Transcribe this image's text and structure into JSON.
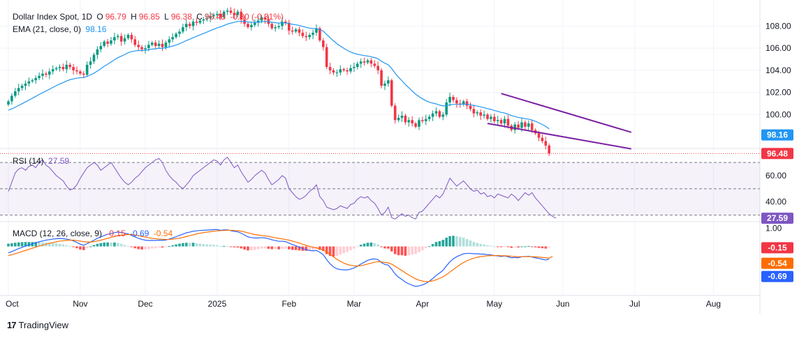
{
  "legend": {
    "symbol": "Dollar Index Spot, 1D",
    "o_label": "O",
    "o": "96.79",
    "h_label": "H",
    "h": "96.85",
    "l_label": "L",
    "l": "96.38",
    "c_label": "C",
    "c": "96.48",
    "change": "-0.30 (-0.31%)",
    "ema_label": "EMA (21, close, 0)",
    "ema": "98.16",
    "rsi_label": "RSI (14)",
    "rsi": "27.59",
    "macd_label": "MACD (12, 26, close, 9)",
    "macd_hist": "-0.15",
    "macd_line": "-0.69",
    "macd_signal": "-0.54"
  },
  "footer": {
    "brand": "TradingView"
  },
  "colors": {
    "up": "#089981",
    "down": "#f23645",
    "ema": "#2196f3",
    "channel": "#7b1fa2",
    "rsi": "#7e57c2",
    "macd": "#2962ff",
    "signal": "#ff6d00"
  },
  "chart_data": [
    {
      "type": "candlestick",
      "title": "Dollar Index Spot, 1D",
      "x_tick_labels": [
        "Oct",
        "Nov",
        "Dec",
        "2025",
        "Feb",
        "Mar",
        "Apr",
        "May",
        "Jun",
        "Jul",
        "Aug"
      ],
      "y_ticks": [
        100,
        102,
        104,
        106,
        108
      ],
      "ylim": [
        97.0,
        109.6
      ],
      "close": [
        101.2,
        101.7,
        102.1,
        102.4,
        102.6,
        102.8,
        103.0,
        103.1,
        103.3,
        103.5,
        103.7,
        103.6,
        103.9,
        104.1,
        104.2,
        104.3,
        104.1,
        104.5,
        104.3,
        104.0,
        103.9,
        103.7,
        103.6,
        104.5,
        104.8,
        105.4,
        105.9,
        106.2,
        106.6,
        106.4,
        106.7,
        107.0,
        107.1,
        106.6,
        106.9,
        107.2,
        106.8,
        106.3,
        106.1,
        105.9,
        106.0,
        106.3,
        106.5,
        106.2,
        106.4,
        106.1,
        106.5,
        106.8,
        107.0,
        107.3,
        107.5,
        107.9,
        108.2,
        108.0,
        108.4,
        108.3,
        108.5,
        108.6,
        108.7,
        108.9,
        109.0,
        109.1,
        108.8,
        109.3,
        109.4,
        109.2,
        109.0,
        109.3,
        108.6,
        108.2,
        107.9,
        108.1,
        108.3,
        108.5,
        108.8,
        108.6,
        108.2,
        107.8,
        107.9,
        108.0,
        108.4,
        108.3,
        107.6,
        107.5,
        107.7,
        107.4,
        107.1,
        107.0,
        107.2,
        107.4,
        107.8,
        106.7,
        106.1,
        104.3,
        104.0,
        103.8,
        103.8,
        104.1,
        104.0,
        103.9,
        104.2,
        104.3,
        104.6,
        104.8,
        104.7,
        104.9,
        104.6,
        104.4,
        104.0,
        102.6,
        102.8,
        103.1,
        100.8,
        99.5,
        99.7,
        99.9,
        99.3,
        99.5,
        99.2,
        98.9,
        99.5,
        99.4,
        99.6,
        99.8,
        100.1,
        100.3,
        99.8,
        100.0,
        101.1,
        101.6,
        101.3,
        101.0,
        100.9,
        101.2,
        100.8,
        100.5,
        100.1,
        100.2,
        99.9,
        100.0,
        99.6,
        99.8,
        99.4,
        99.5,
        99.2,
        99.6,
        99.0,
        98.6,
        99.1,
        98.8,
        99.3,
        98.9,
        99.2,
        98.6,
        98.3,
        97.9,
        97.6,
        97.2,
        96.48
      ],
      "ema_21_last": 98.16,
      "last_close": 96.48,
      "channel": {
        "upper": [
          {
            "date_index": 144,
            "price": 101.9
          },
          {
            "date_index": 182,
            "price": 98.4
          }
        ],
        "lower": [
          {
            "date_index": 140,
            "price": 99.2
          },
          {
            "date_index": 182,
            "price": 96.9
          }
        ]
      }
    },
    {
      "type": "line",
      "title": "RSI (14)",
      "y_ticks": [
        40,
        60
      ],
      "bands": [
        30,
        50,
        70
      ],
      "values": [
        48,
        55,
        62,
        65,
        66,
        64,
        67,
        68,
        66,
        70,
        72,
        68,
        66,
        63,
        60,
        58,
        56,
        52,
        49,
        50,
        53,
        58,
        62,
        66,
        68,
        70,
        68,
        64,
        66,
        68,
        70,
        66,
        62,
        58,
        55,
        53,
        55,
        58,
        60,
        63,
        66,
        68,
        70,
        72,
        73,
        70,
        64,
        60,
        57,
        55,
        52,
        50,
        53,
        56,
        60,
        62,
        64,
        66,
        68,
        70,
        72,
        71,
        68,
        72,
        74,
        70,
        66,
        68,
        63,
        59,
        55,
        57,
        60,
        62,
        64,
        62,
        57,
        53,
        55,
        57,
        60,
        58,
        50,
        47,
        44,
        42,
        43,
        45,
        48,
        50,
        53,
        44,
        41,
        36,
        35,
        34,
        35,
        37,
        36,
        35,
        38,
        39,
        42,
        44,
        43,
        44,
        41,
        39,
        35,
        30,
        32,
        36,
        28,
        27,
        29,
        31,
        29,
        30,
        28,
        27,
        32,
        33,
        36,
        39,
        42,
        45,
        43,
        46,
        52,
        58,
        55,
        52,
        54,
        56,
        53,
        50,
        48,
        49,
        46,
        47,
        44,
        45,
        43,
        46,
        45,
        44,
        43,
        46,
        44,
        41,
        44,
        47,
        45,
        47,
        43,
        40,
        37,
        34,
        31,
        29,
        27.59
      ],
      "last": 27.59
    },
    {
      "type": "macd",
      "title": "MACD (12, 26, close, 9)",
      "y_ticks": [
        1.0
      ],
      "macd": [
        -0.35,
        -0.28,
        -0.2,
        -0.12,
        -0.05,
        0.02,
        0.08,
        0.14,
        0.2,
        0.25,
        0.3,
        0.34,
        0.37,
        0.4,
        0.42,
        0.43,
        0.42,
        0.4,
        0.36,
        0.3,
        0.22,
        0.12,
        0.06,
        0.15,
        0.24,
        0.34,
        0.44,
        0.52,
        0.6,
        0.66,
        0.7,
        0.75,
        0.78,
        0.76,
        0.72,
        0.68,
        0.6,
        0.52,
        0.44,
        0.38,
        0.34,
        0.32,
        0.33,
        0.32,
        0.34,
        0.33,
        0.35,
        0.4,
        0.46,
        0.53,
        0.6,
        0.67,
        0.74,
        0.78,
        0.83,
        0.85,
        0.87,
        0.88,
        0.89,
        0.9,
        0.92,
        0.92,
        0.88,
        0.9,
        0.9,
        0.86,
        0.82,
        0.8,
        0.72,
        0.62,
        0.52,
        0.48,
        0.46,
        0.46,
        0.48,
        0.46,
        0.42,
        0.36,
        0.32,
        0.28,
        0.28,
        0.26,
        0.18,
        0.1,
        0.04,
        -0.04,
        -0.12,
        -0.18,
        -0.22,
        -0.24,
        -0.22,
        -0.32,
        -0.45,
        -0.72,
        -0.95,
        -1.12,
        -1.22,
        -1.26,
        -1.28,
        -1.28,
        -1.24,
        -1.18,
        -1.08,
        -0.96,
        -0.86,
        -0.76,
        -0.7,
        -0.68,
        -0.72,
        -0.88,
        -0.98,
        -1.02,
        -1.24,
        -1.5,
        -1.68,
        -1.8,
        -1.95,
        -2.04,
        -2.12,
        -2.18,
        -2.15,
        -2.1,
        -2.02,
        -1.9,
        -1.75,
        -1.58,
        -1.45,
        -1.3,
        -1.06,
        -0.84,
        -0.68,
        -0.56,
        -0.48,
        -0.4,
        -0.38,
        -0.38,
        -0.4,
        -0.4,
        -0.42,
        -0.42,
        -0.45,
        -0.46,
        -0.5,
        -0.52,
        -0.55,
        -0.52,
        -0.56,
        -0.62,
        -0.6,
        -0.62,
        -0.56,
        -0.56,
        -0.54,
        -0.58,
        -0.62,
        -0.66,
        -0.7,
        -0.74,
        -0.69
      ],
      "signal": [
        -0.5,
        -0.45,
        -0.4,
        -0.34,
        -0.28,
        -0.22,
        -0.16,
        -0.1,
        -0.04,
        0.02,
        0.07,
        0.12,
        0.17,
        0.21,
        0.25,
        0.29,
        0.31,
        0.33,
        0.34,
        0.34,
        0.32,
        0.29,
        0.26,
        0.24,
        0.24,
        0.26,
        0.3,
        0.34,
        0.39,
        0.44,
        0.49,
        0.54,
        0.59,
        0.62,
        0.64,
        0.65,
        0.64,
        0.62,
        0.59,
        0.55,
        0.51,
        0.47,
        0.44,
        0.42,
        0.4,
        0.39,
        0.38,
        0.38,
        0.4,
        0.42,
        0.45,
        0.49,
        0.54,
        0.59,
        0.63,
        0.68,
        0.72,
        0.75,
        0.78,
        0.8,
        0.83,
        0.85,
        0.86,
        0.87,
        0.88,
        0.88,
        0.87,
        0.86,
        0.83,
        0.79,
        0.74,
        0.69,
        0.65,
        0.62,
        0.6,
        0.57,
        0.55,
        0.51,
        0.47,
        0.44,
        0.41,
        0.38,
        0.34,
        0.29,
        0.24,
        0.18,
        0.12,
        0.06,
        0.0,
        -0.05,
        -0.08,
        -0.13,
        -0.2,
        -0.3,
        -0.43,
        -0.57,
        -0.7,
        -0.81,
        -0.91,
        -0.98,
        -1.03,
        -1.06,
        -1.07,
        -1.05,
        -1.01,
        -0.96,
        -0.91,
        -0.86,
        -0.83,
        -0.84,
        -0.87,
        -0.9,
        -0.97,
        -1.08,
        -1.2,
        -1.32,
        -1.44,
        -1.56,
        -1.67,
        -1.77,
        -1.84,
        -1.89,
        -1.92,
        -1.91,
        -1.88,
        -1.82,
        -1.74,
        -1.66,
        -1.54,
        -1.4,
        -1.26,
        -1.12,
        -0.99,
        -0.88,
        -0.78,
        -0.7,
        -0.64,
        -0.59,
        -0.56,
        -0.53,
        -0.51,
        -0.5,
        -0.5,
        -0.5,
        -0.51,
        -0.51,
        -0.52,
        -0.54,
        -0.55,
        -0.56,
        -0.56,
        -0.56,
        -0.56,
        -0.56,
        -0.57,
        -0.58,
        -0.6,
        -0.62,
        -0.64,
        -0.54
      ]
    }
  ]
}
